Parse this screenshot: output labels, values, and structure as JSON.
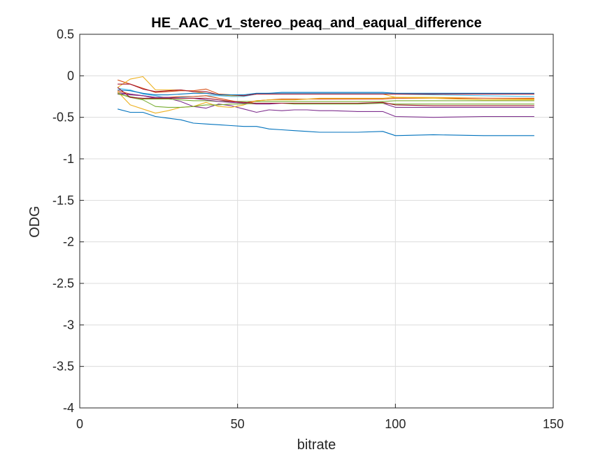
{
  "chart_data": {
    "type": "line",
    "title": "HE_AAC_v1_stereo_peaq_and_eaqual_difference",
    "xlabel": "bitrate",
    "ylabel": "ODG",
    "xlim": [
      0,
      150
    ],
    "ylim": [
      -4,
      0.5
    ],
    "xticks": [
      0,
      50,
      100,
      150
    ],
    "xtick_labels": [
      "0",
      "50",
      "100",
      "150"
    ],
    "yticks": [
      0.5,
      0,
      -0.5,
      -1,
      -1.5,
      -2,
      -2.5,
      -3,
      -3.5,
      -4
    ],
    "ytick_labels": [
      "0.5",
      "0",
      "-0.5",
      "-1",
      "-1.5",
      "-2",
      "-2.5",
      "-3",
      "-3.5",
      "-4"
    ],
    "grid": true,
    "legend": "none",
    "x": [
      12,
      16,
      20,
      24,
      28,
      32,
      36,
      40,
      44,
      48,
      52,
      56,
      60,
      64,
      68,
      72,
      76,
      80,
      88,
      96,
      100,
      112,
      128,
      144
    ],
    "series": [
      {
        "color": "#0072BD",
        "values": [
          -0.4,
          -0.44,
          -0.44,
          -0.49,
          -0.51,
          -0.53,
          -0.57,
          -0.58,
          -0.59,
          -0.6,
          -0.61,
          -0.61,
          -0.64,
          -0.65,
          -0.66,
          -0.67,
          -0.68,
          -0.68,
          -0.68,
          -0.67,
          -0.72,
          -0.71,
          -0.72,
          -0.72
        ]
      },
      {
        "color": "#D95319",
        "values": [
          -0.05,
          -0.1,
          -0.15,
          -0.2,
          -0.19,
          -0.18,
          -0.18,
          -0.16,
          -0.22,
          -0.23,
          -0.24,
          -0.22,
          -0.22,
          -0.22,
          -0.22,
          -0.22,
          -0.22,
          -0.22,
          -0.22,
          -0.22,
          -0.22,
          -0.22,
          -0.22,
          -0.22
        ]
      },
      {
        "color": "#EDB120",
        "values": [
          -0.14,
          -0.04,
          -0.01,
          -0.17,
          -0.17,
          -0.17,
          -0.19,
          -0.21,
          -0.23,
          -0.24,
          -0.24,
          -0.22,
          -0.22,
          -0.22,
          -0.22,
          -0.22,
          -0.22,
          -0.22,
          -0.22,
          -0.22,
          -0.26,
          -0.26,
          -0.27,
          -0.28
        ]
      },
      {
        "color": "#7E2F8E",
        "values": [
          -0.2,
          -0.23,
          -0.24,
          -0.27,
          -0.27,
          -0.31,
          -0.37,
          -0.39,
          -0.34,
          -0.36,
          -0.4,
          -0.44,
          -0.41,
          -0.42,
          -0.41,
          -0.41,
          -0.42,
          -0.42,
          -0.43,
          -0.43,
          -0.49,
          -0.5,
          -0.49,
          -0.49
        ]
      },
      {
        "color": "#77AC30",
        "values": [
          -0.22,
          -0.25,
          -0.28,
          -0.28,
          -0.28,
          -0.29,
          -0.3,
          -0.3,
          -0.31,
          -0.31,
          -0.31,
          -0.31,
          -0.31,
          -0.31,
          -0.31,
          -0.31,
          -0.31,
          -0.31,
          -0.31,
          -0.31,
          -0.3,
          -0.3,
          -0.3,
          -0.3
        ]
      },
      {
        "color": "#4DBEEE",
        "values": [
          -0.15,
          -0.17,
          -0.22,
          -0.24,
          -0.27,
          -0.26,
          -0.25,
          -0.24,
          -0.24,
          -0.25,
          -0.25,
          -0.22,
          -0.21,
          -0.21,
          -0.21,
          -0.21,
          -0.21,
          -0.21,
          -0.21,
          -0.21,
          -0.22,
          -0.23,
          -0.24,
          -0.25
        ]
      },
      {
        "color": "#A2142F",
        "values": [
          -0.1,
          -0.1,
          -0.16,
          -0.19,
          -0.18,
          -0.17,
          -0.19,
          -0.19,
          -0.23,
          -0.23,
          -0.24,
          -0.22,
          -0.22,
          -0.22,
          -0.22,
          -0.22,
          -0.22,
          -0.22,
          -0.22,
          -0.22,
          -0.22,
          -0.22,
          -0.22,
          -0.22
        ]
      },
      {
        "color": "#0072BD",
        "values": [
          -0.17,
          -0.18,
          -0.21,
          -0.23,
          -0.23,
          -0.22,
          -0.21,
          -0.21,
          -0.23,
          -0.23,
          -0.23,
          -0.21,
          -0.21,
          -0.2,
          -0.2,
          -0.2,
          -0.2,
          -0.2,
          -0.2,
          -0.2,
          -0.21,
          -0.21,
          -0.21,
          -0.21
        ]
      },
      {
        "color": "#D95319",
        "values": [
          -0.18,
          -0.22,
          -0.24,
          -0.26,
          -0.26,
          -0.25,
          -0.25,
          -0.24,
          -0.27,
          -0.3,
          -0.33,
          -0.3,
          -0.29,
          -0.28,
          -0.28,
          -0.28,
          -0.28,
          -0.28,
          -0.28,
          -0.28,
          -0.27,
          -0.27,
          -0.27,
          -0.27
        ]
      },
      {
        "color": "#EDB120",
        "values": [
          -0.19,
          -0.35,
          -0.4,
          -0.45,
          -0.42,
          -0.38,
          -0.37,
          -0.32,
          -0.37,
          -0.38,
          -0.35,
          -0.3,
          -0.29,
          -0.29,
          -0.29,
          -0.28,
          -0.27,
          -0.27,
          -0.27,
          -0.27,
          -0.26,
          -0.27,
          -0.29,
          -0.29
        ]
      },
      {
        "color": "#7E2F8E",
        "values": [
          -0.22,
          -0.22,
          -0.24,
          -0.26,
          -0.26,
          -0.27,
          -0.27,
          -0.29,
          -0.31,
          -0.32,
          -0.33,
          -0.34,
          -0.34,
          -0.33,
          -0.33,
          -0.33,
          -0.33,
          -0.33,
          -0.33,
          -0.33,
          -0.38,
          -0.38,
          -0.38,
          -0.38
        ]
      },
      {
        "color": "#77AC30",
        "values": [
          -0.21,
          -0.26,
          -0.29,
          -0.37,
          -0.38,
          -0.38,
          -0.37,
          -0.35,
          -0.35,
          -0.34,
          -0.34,
          -0.33,
          -0.33,
          -0.33,
          -0.34,
          -0.34,
          -0.34,
          -0.34,
          -0.34,
          -0.33,
          -0.34,
          -0.34,
          -0.34,
          -0.34
        ]
      },
      {
        "color": "#A2142F",
        "values": [
          -0.14,
          -0.26,
          -0.27,
          -0.27,
          -0.27,
          -0.27,
          -0.27,
          -0.27,
          -0.29,
          -0.31,
          -0.32,
          -0.33,
          -0.33,
          -0.33,
          -0.33,
          -0.33,
          -0.33,
          -0.33,
          -0.33,
          -0.32,
          -0.35,
          -0.36,
          -0.36,
          -0.36
        ]
      }
    ]
  }
}
